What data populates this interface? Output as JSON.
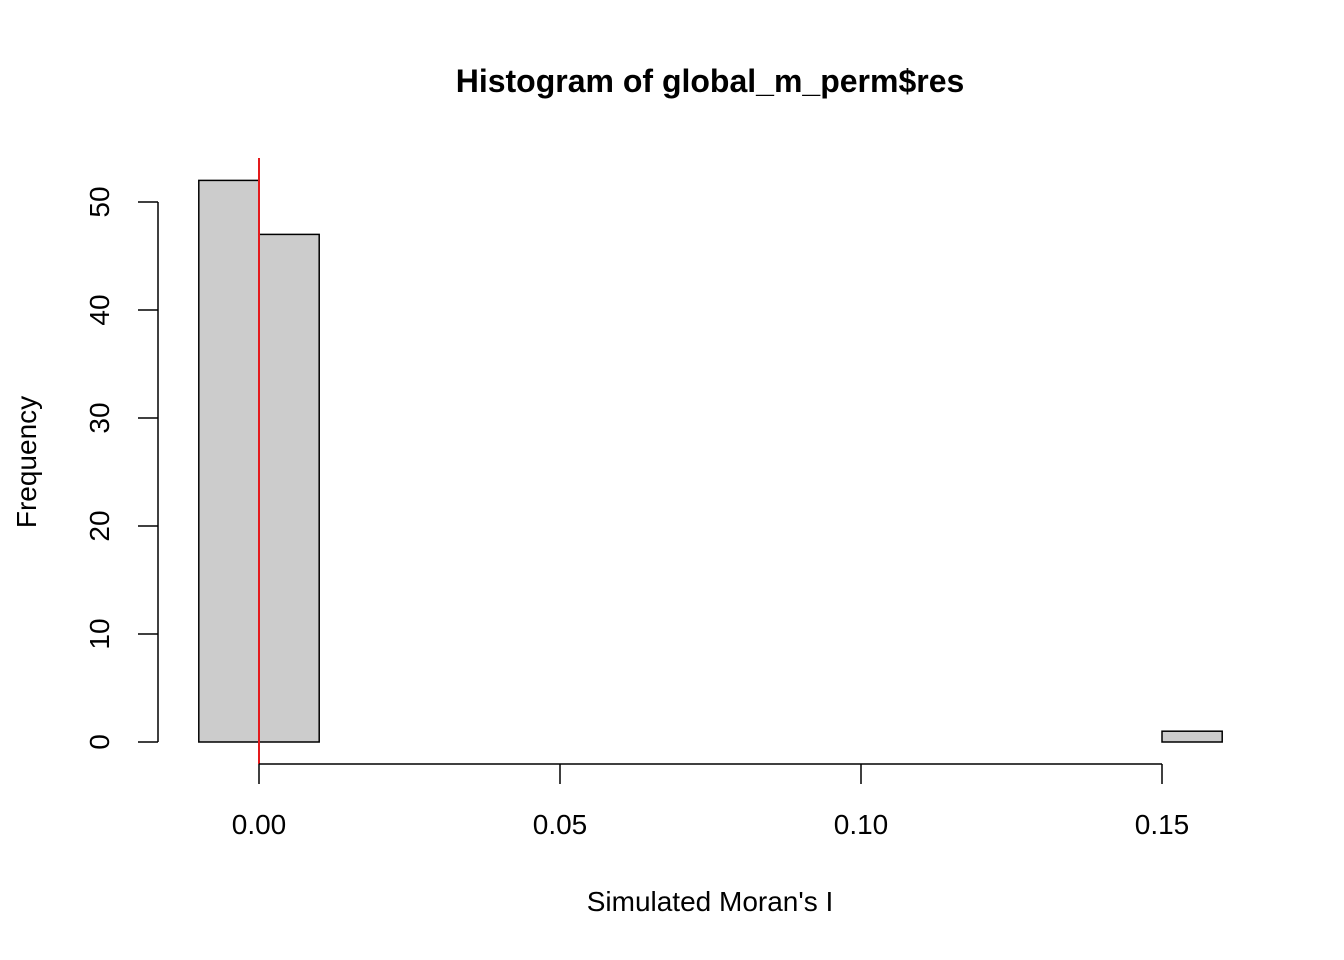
{
  "chart_data": {
    "type": "bar",
    "title": "Histogram of global_m_perm$res",
    "xlabel": "Simulated Moran's I",
    "ylabel": "Frequency",
    "bins": [
      {
        "start": -0.01,
        "end": 0.0,
        "count": 52
      },
      {
        "start": 0.0,
        "end": 0.01,
        "count": 47
      },
      {
        "start": 0.01,
        "end": 0.02,
        "count": 0
      },
      {
        "start": 0.02,
        "end": 0.03,
        "count": 0
      },
      {
        "start": 0.03,
        "end": 0.04,
        "count": 0
      },
      {
        "start": 0.04,
        "end": 0.05,
        "count": 0
      },
      {
        "start": 0.05,
        "end": 0.06,
        "count": 0
      },
      {
        "start": 0.06,
        "end": 0.07,
        "count": 0
      },
      {
        "start": 0.07,
        "end": 0.08,
        "count": 0
      },
      {
        "start": 0.08,
        "end": 0.09,
        "count": 0
      },
      {
        "start": 0.09,
        "end": 0.1,
        "count": 0
      },
      {
        "start": 0.1,
        "end": 0.11,
        "count": 0
      },
      {
        "start": 0.11,
        "end": 0.12,
        "count": 0
      },
      {
        "start": 0.12,
        "end": 0.13,
        "count": 0
      },
      {
        "start": 0.13,
        "end": 0.14,
        "count": 0
      },
      {
        "start": 0.14,
        "end": 0.15,
        "count": 0
      },
      {
        "start": 0.15,
        "end": 0.16,
        "count": 1
      }
    ],
    "xticks": [
      0.0,
      0.05,
      0.1,
      0.15
    ],
    "xtick_labels": [
      "0.00",
      "0.05",
      "0.10",
      "0.15"
    ],
    "yticks": [
      0,
      10,
      20,
      30,
      40,
      50
    ],
    "ytick_labels": [
      "0",
      "10",
      "20",
      "30",
      "40",
      "50"
    ],
    "reference_line": {
      "x": 0.0,
      "color": "#e41a1c"
    },
    "bar_fill": "#cccccc",
    "bar_stroke": "#000000",
    "grid": false,
    "legend": "none"
  }
}
